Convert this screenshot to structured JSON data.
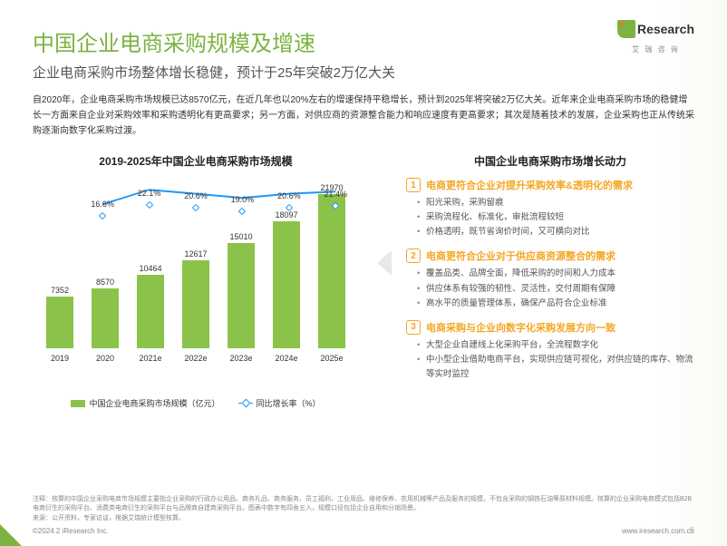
{
  "logo": {
    "brand": "Research",
    "sub": "艾 瑞 咨 询"
  },
  "title": "中国企业电商采购规模及增速",
  "subtitle": "企业电商采购市场整体增长稳健，预计于25年突破2万亿大关",
  "intro": "自2020年，企业电商采购市场规模已达8570亿元，在近几年也以20%左右的增速保持平稳增长，预计到2025年将突破2万亿大关。近年来企业电商采购市场的稳健增长一方面来自企业对采购效率和采购透明化有更高要求；另一方面，对供应商的资源整合能力和响应速度有更高要求；其次是随着技术的发展，企业采购也正从传统采购逐渐向数字化采购过渡。",
  "chart": {
    "title": "2019-2025年中国企业电商采购市场规模",
    "type": "bar+line",
    "categories": [
      "2019",
      "2020",
      "2021e",
      "2022e",
      "2023e",
      "2024e",
      "2025e"
    ],
    "bar_values": [
      7352,
      8570,
      10464,
      12617,
      15010,
      18097,
      21970
    ],
    "bar_color": "#8bc34a",
    "line_values": [
      16.6,
      22.1,
      20.6,
      19.0,
      20.6,
      21.4
    ],
    "line_labels": [
      "16.6%",
      "22.1%",
      "20.6%",
      "19.0%",
      "20.6%",
      "21.4%"
    ],
    "line_color": "#2196f3",
    "y_max": 22000,
    "bar_legend": "中国企业电商采购市场规模（亿元）",
    "line_legend": "同比增长率（%）",
    "background": "#ffffff"
  },
  "right": {
    "title": "中国企业电商采购市场增长动力",
    "blocks": [
      {
        "num": "1",
        "title": "电商更符合企业对提升采购效率&透明化的需求",
        "items": [
          "阳光采购，采购留痕",
          "采购流程化、标准化，审批流程较短",
          "价格透明，既节省询价时间，又可横向对比"
        ]
      },
      {
        "num": "2",
        "title": "电商更符合企业对于供应商资源整合的需求",
        "items": [
          "覆盖品类、品牌全面，降低采购的时间和人力成本",
          "供应体系有较强的韧性、灵活性，交付周期有保障",
          "高水平的质量管理体系，确保产品符合企业标准"
        ]
      },
      {
        "num": "3",
        "title": "电商采购与企业向数字化采购发展方向一致",
        "items": [
          "大型企业自建线上化采购平台，全流程数字化",
          "中小型企业借助电商平台，实现供应链可视化，对供应链的库存、物流等实时监控"
        ]
      }
    ]
  },
  "note": "注释：核算的中国企业采购电商市场规模主要指企业采购的行政办公用品、商务礼品、商务服务、员工福利、工业用品、维修保养、农用机械等产品及服务的规模，不包含采购的钢铁石油等原材料规模。核算的企业采购电商模式包括B2B电商衍生的采购平台、消费类电商衍生的采购平台与品牌商自建商采购平台。图表中数字有四舍五入，规模口径包括企业自用和分销场景。",
  "source": "来源：公开资料，专家访谈，根据艾瑞统计模型核算。",
  "copyright": "©2024.2 iResearch Inc.",
  "url": "www.iresearch.com.cn",
  "page": "5",
  "colors": {
    "accent": "#7cb342",
    "orange": "#f5a623",
    "blue": "#2196f3",
    "text": "#333333",
    "muted": "#888888"
  }
}
